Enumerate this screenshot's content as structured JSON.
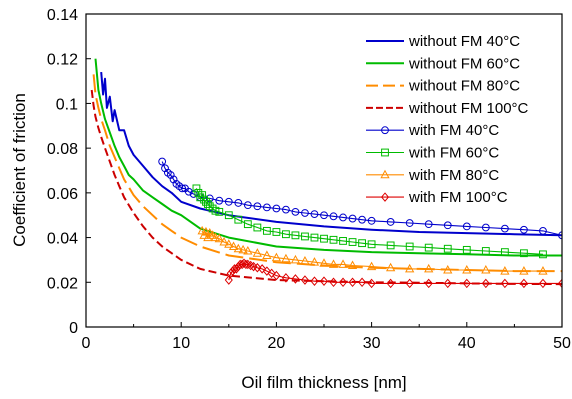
{
  "chart_data": {
    "type": "line",
    "xlabel": "Oil film thickness [nm]",
    "ylabel": "Coefficient of friction",
    "xlim": [
      0,
      50
    ],
    "ylim": [
      0,
      0.14
    ],
    "xticks": [
      0,
      10,
      20,
      30,
      40,
      50
    ],
    "xtick_labels": [
      "0",
      "10",
      "20",
      "30",
      "40",
      "50"
    ],
    "yticks": [
      0,
      0.02,
      0.04,
      0.06,
      0.08,
      0.1,
      0.12,
      0.14
    ],
    "ytick_labels": [
      "0",
      "0.02",
      "0.04",
      "0.06",
      "0.08",
      "0.1",
      "0.12",
      "0.14"
    ],
    "grid": false,
    "legend_position": "top-right",
    "series": [
      {
        "name": "without FM 40°C",
        "color": "#0000cc",
        "style": "solid",
        "marker": "none",
        "x": [
          1.6,
          1.8,
          2.0,
          2.2,
          2.5,
          2.8,
          3.0,
          3.5,
          4.0,
          4.5,
          5.0,
          6.0,
          7.0,
          8.0,
          9.0,
          10.0,
          12.0,
          15.0,
          20.0,
          25.0,
          30.0,
          35.0,
          40.0,
          45.0,
          50.0
        ],
        "y": [
          0.114,
          0.104,
          0.111,
          0.098,
          0.103,
          0.092,
          0.097,
          0.088,
          0.088,
          0.081,
          0.077,
          0.072,
          0.067,
          0.063,
          0.06,
          0.056,
          0.053,
          0.05,
          0.047,
          0.045,
          0.0435,
          0.0425,
          0.042,
          0.0415,
          0.041
        ]
      },
      {
        "name": "without FM 60°C",
        "color": "#00bb00",
        "style": "solid",
        "marker": "none",
        "x": [
          1.0,
          1.3,
          1.6,
          2.0,
          2.5,
          3.0,
          3.5,
          4.0,
          4.5,
          5.0,
          6.0,
          7.0,
          8.0,
          9.0,
          10.0,
          12.0,
          15.0,
          20.0,
          25.0,
          30.0,
          35.0,
          40.0,
          45.0,
          50.0
        ],
        "y": [
          0.12,
          0.106,
          0.1,
          0.093,
          0.087,
          0.081,
          0.076,
          0.072,
          0.068,
          0.066,
          0.061,
          0.058,
          0.055,
          0.052,
          0.05,
          0.044,
          0.04,
          0.036,
          0.0345,
          0.0335,
          0.033,
          0.0325,
          0.032,
          0.032
        ]
      },
      {
        "name": "without FM 80°C",
        "color": "#ff8c00",
        "style": "long-dash",
        "marker": "none",
        "x": [
          0.8,
          1.0,
          1.3,
          1.6,
          2.0,
          2.5,
          3.0,
          3.5,
          4.0,
          5.0,
          6.0,
          7.0,
          8.0,
          9.0,
          10.0,
          12.0,
          15.0,
          20.0,
          25.0,
          30.0,
          35.0,
          40.0,
          45.0,
          50.0
        ],
        "y": [
          0.113,
          0.104,
          0.098,
          0.093,
          0.088,
          0.081,
          0.076,
          0.071,
          0.066,
          0.059,
          0.054,
          0.05,
          0.046,
          0.043,
          0.04,
          0.036,
          0.032,
          0.029,
          0.0275,
          0.0265,
          0.026,
          0.0255,
          0.025,
          0.025
        ]
      },
      {
        "name": "without FM 100°C",
        "color": "#cc0000",
        "style": "short-dash",
        "marker": "none",
        "x": [
          0.6,
          0.8,
          1.0,
          1.3,
          1.6,
          2.0,
          2.5,
          3.0,
          3.5,
          4.0,
          5.0,
          6.0,
          7.0,
          8.0,
          9.0,
          10.0,
          12.0,
          15.0,
          20.0,
          25.0,
          30.0,
          35.0,
          40.0,
          45.0,
          50.0
        ],
        "y": [
          0.106,
          0.099,
          0.094,
          0.089,
          0.085,
          0.08,
          0.074,
          0.068,
          0.063,
          0.058,
          0.051,
          0.045,
          0.04,
          0.036,
          0.033,
          0.03,
          0.026,
          0.023,
          0.021,
          0.0205,
          0.02,
          0.0198,
          0.0195,
          0.0193,
          0.0192
        ]
      },
      {
        "name": "with FM 40°C",
        "color": "#0000cc",
        "style": "solid",
        "marker": "circle",
        "x": [
          8.0,
          8.3,
          8.6,
          8.9,
          9.2,
          9.5,
          9.8,
          10.1,
          10.4,
          10.8,
          11.3,
          12.0,
          13.0,
          14.0,
          15.0,
          16.0,
          17.0,
          18.0,
          19.0,
          20.0,
          21.0,
          22.0,
          23.0,
          24.0,
          25.0,
          26.0,
          27.0,
          28.0,
          29.0,
          30.0,
          32.0,
          34.0,
          36.0,
          38.0,
          40.0,
          42.0,
          44.0,
          46.0,
          48.0,
          50.0
        ],
        "y": [
          0.074,
          0.071,
          0.069,
          0.068,
          0.066,
          0.064,
          0.063,
          0.062,
          0.062,
          0.0605,
          0.0595,
          0.058,
          0.0575,
          0.0565,
          0.056,
          0.0555,
          0.0545,
          0.054,
          0.0535,
          0.053,
          0.0525,
          0.0515,
          0.051,
          0.0505,
          0.05,
          0.0495,
          0.049,
          0.0485,
          0.048,
          0.0475,
          0.047,
          0.0465,
          0.046,
          0.0455,
          0.045,
          0.0445,
          0.044,
          0.0435,
          0.043,
          0.041
        ]
      },
      {
        "name": "with FM 60°C",
        "color": "#00bb00",
        "style": "solid",
        "marker": "square",
        "x": [
          11.6,
          11.8,
          12.0,
          12.2,
          12.4,
          12.6,
          12.8,
          13.0,
          13.3,
          13.6,
          14.0,
          15.0,
          16.0,
          17.0,
          18.0,
          19.0,
          20.0,
          21.0,
          22.0,
          23.0,
          24.0,
          25.0,
          26.0,
          27.0,
          28.0,
          29.0,
          30.0,
          32.0,
          34.0,
          36.0,
          38.0,
          40.0,
          42.0,
          44.0,
          46.0,
          48.0
        ],
        "y": [
          0.062,
          0.06,
          0.058,
          0.059,
          0.057,
          0.056,
          0.055,
          0.054,
          0.053,
          0.052,
          0.0515,
          0.05,
          0.048,
          0.046,
          0.0445,
          0.043,
          0.0425,
          0.0415,
          0.041,
          0.0405,
          0.04,
          0.0395,
          0.039,
          0.0385,
          0.038,
          0.0375,
          0.037,
          0.0365,
          0.036,
          0.0355,
          0.035,
          0.0345,
          0.034,
          0.0335,
          0.033,
          0.0325
        ]
      },
      {
        "name": "with FM 80°C",
        "color": "#ff8c00",
        "style": "solid",
        "marker": "triangle",
        "x": [
          12.2,
          12.4,
          12.6,
          12.8,
          13.0,
          13.3,
          13.6,
          14.0,
          14.5,
          15.0,
          15.5,
          16.0,
          16.5,
          17.0,
          18.0,
          19.0,
          20.0,
          21.0,
          22.0,
          23.0,
          24.0,
          25.0,
          26.0,
          27.0,
          28.0,
          30.0,
          32.0,
          34.0,
          36.0,
          38.0,
          40.0,
          42.0,
          44.0,
          46.0,
          48.0
        ],
        "y": [
          0.043,
          0.041,
          0.0425,
          0.04,
          0.042,
          0.041,
          0.04,
          0.0395,
          0.038,
          0.037,
          0.036,
          0.035,
          0.0345,
          0.034,
          0.033,
          0.032,
          0.031,
          0.0305,
          0.03,
          0.0295,
          0.029,
          0.0285,
          0.028,
          0.028,
          0.0275,
          0.027,
          0.0265,
          0.026,
          0.026,
          0.0255,
          0.0255,
          0.0255,
          0.025,
          0.025,
          0.025
        ]
      },
      {
        "name": "with FM 100°C",
        "color": "#dd0000",
        "style": "solid",
        "marker": "diamond",
        "x": [
          15.0,
          15.2,
          15.4,
          15.6,
          15.8,
          16.0,
          16.2,
          16.4,
          16.6,
          16.8,
          17.0,
          17.3,
          17.6,
          18.0,
          18.5,
          19.0,
          19.5,
          20.0,
          21.0,
          22.0,
          23.0,
          24.0,
          25.0,
          26.0,
          27.0,
          28.0,
          29.0,
          30.0,
          32.0,
          34.0,
          36.0,
          38.0,
          40.0,
          42.0,
          44.0,
          46.0,
          48.0,
          50.0
        ],
        "y": [
          0.021,
          0.024,
          0.025,
          0.026,
          0.026,
          0.027,
          0.028,
          0.028,
          0.0285,
          0.028,
          0.028,
          0.0275,
          0.027,
          0.0265,
          0.026,
          0.025,
          0.024,
          0.023,
          0.022,
          0.0215,
          0.021,
          0.0205,
          0.0205,
          0.02,
          0.02,
          0.02,
          0.02,
          0.0195,
          0.0195,
          0.0195,
          0.0195,
          0.0195,
          0.0195,
          0.0195,
          0.0195,
          0.0195,
          0.0195,
          0.0195
        ]
      }
    ]
  }
}
